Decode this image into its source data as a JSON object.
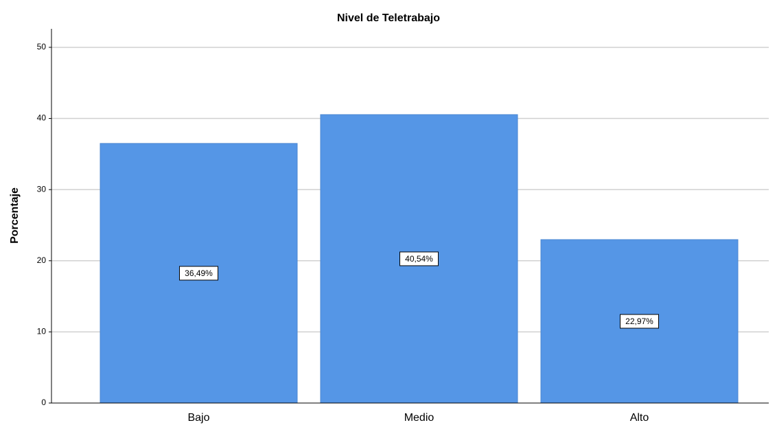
{
  "chart_data": {
    "type": "bar",
    "title": "Nivel de Teletrabajo",
    "y_label": "Porcentaje",
    "categories": [
      "Bajo",
      "Medio",
      "Alto"
    ],
    "values": [
      36.49,
      40.54,
      22.97
    ],
    "value_labels": [
      "36,49%",
      "40,54%",
      "22,97%"
    ],
    "color": "#5596e6",
    "ylim": [
      0,
      52.6
    ],
    "yticks": [
      0,
      10,
      20,
      30,
      40,
      50
    ],
    "grid": true
  }
}
